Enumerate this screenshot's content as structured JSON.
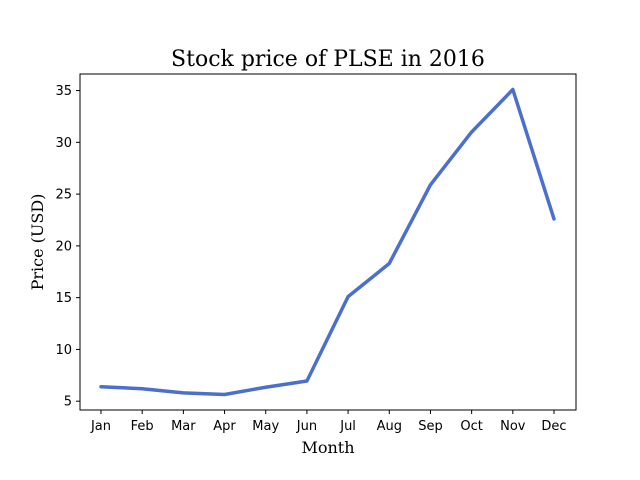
{
  "chart_data": {
    "type": "line",
    "title": "Stock price of PLSE in 2016",
    "xlabel": "Month",
    "ylabel": "Price (USD)",
    "categories": [
      "Jan",
      "Feb",
      "Mar",
      "Apr",
      "May",
      "Jun",
      "Jul",
      "Aug",
      "Sep",
      "Oct",
      "Nov",
      "Dec"
    ],
    "series": [
      {
        "values": [
          6.4,
          6.2,
          5.8,
          5.65,
          6.35,
          6.95,
          15.1,
          18.3,
          25.9,
          31.0,
          35.1,
          22.6
        ],
        "color": "#4c6fcd"
      }
    ],
    "ylim": [
      4.15,
      36.6
    ],
    "yticks": [
      5,
      10,
      15,
      20,
      25,
      30,
      35
    ],
    "grid": false,
    "legend": "none"
  }
}
